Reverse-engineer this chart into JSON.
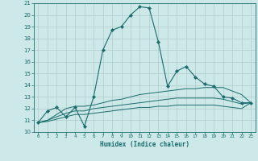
{
  "xlabel": "Humidex (Indice chaleur)",
  "bg_color": "#cce8e8",
  "grid_color": "#b0cccc",
  "line_color": "#1a6b6b",
  "xlim": [
    -0.5,
    23.5
  ],
  "ylim": [
    10,
    21
  ],
  "xticks": [
    0,
    1,
    2,
    3,
    4,
    5,
    6,
    7,
    8,
    9,
    10,
    11,
    12,
    13,
    14,
    15,
    16,
    17,
    18,
    19,
    20,
    21,
    22,
    23
  ],
  "yticks": [
    10,
    11,
    12,
    13,
    14,
    15,
    16,
    17,
    18,
    19,
    20,
    21
  ],
  "series": [
    {
      "x": [
        0,
        1,
        2,
        3,
        4,
        5,
        6,
        7,
        8,
        9,
        10,
        11,
        12,
        13,
        14,
        15,
        16,
        17,
        18,
        19,
        20,
        21,
        22,
        23
      ],
      "y": [
        10.8,
        11.8,
        12.1,
        11.3,
        12.1,
        10.5,
        13.0,
        17.0,
        18.7,
        19.0,
        20.0,
        20.7,
        20.6,
        17.7,
        13.9,
        15.2,
        15.6,
        14.7,
        14.1,
        13.9,
        13.0,
        12.9,
        12.5,
        12.5
      ],
      "marker": true
    },
    {
      "x": [
        0,
        1,
        2,
        3,
        4,
        5,
        6,
        7,
        8,
        9,
        10,
        11,
        12,
        13,
        14,
        15,
        16,
        17,
        18,
        19,
        20,
        21,
        22,
        23
      ],
      "y": [
        10.8,
        11.0,
        11.5,
        12.0,
        12.2,
        12.2,
        12.3,
        12.5,
        12.7,
        12.8,
        13.0,
        13.2,
        13.3,
        13.4,
        13.5,
        13.6,
        13.7,
        13.7,
        13.8,
        13.8,
        13.8,
        13.5,
        13.2,
        12.5
      ],
      "marker": false
    },
    {
      "x": [
        0,
        1,
        2,
        3,
        4,
        5,
        6,
        7,
        8,
        9,
        10,
        11,
        12,
        13,
        14,
        15,
        16,
        17,
        18,
        19,
        20,
        21,
        22,
        23
      ],
      "y": [
        10.8,
        11.0,
        11.3,
        11.6,
        11.8,
        11.8,
        12.0,
        12.1,
        12.2,
        12.3,
        12.4,
        12.5,
        12.6,
        12.7,
        12.8,
        12.9,
        12.9,
        12.9,
        12.9,
        12.9,
        12.8,
        12.6,
        12.4,
        12.5
      ],
      "marker": false
    },
    {
      "x": [
        0,
        1,
        2,
        3,
        4,
        5,
        6,
        7,
        8,
        9,
        10,
        11,
        12,
        13,
        14,
        15,
        16,
        17,
        18,
        19,
        20,
        21,
        22,
        23
      ],
      "y": [
        10.8,
        10.9,
        11.1,
        11.3,
        11.5,
        11.5,
        11.6,
        11.7,
        11.8,
        11.9,
        12.0,
        12.1,
        12.1,
        12.2,
        12.2,
        12.3,
        12.3,
        12.3,
        12.3,
        12.3,
        12.2,
        12.1,
        12.0,
        12.5
      ],
      "marker": false
    }
  ]
}
